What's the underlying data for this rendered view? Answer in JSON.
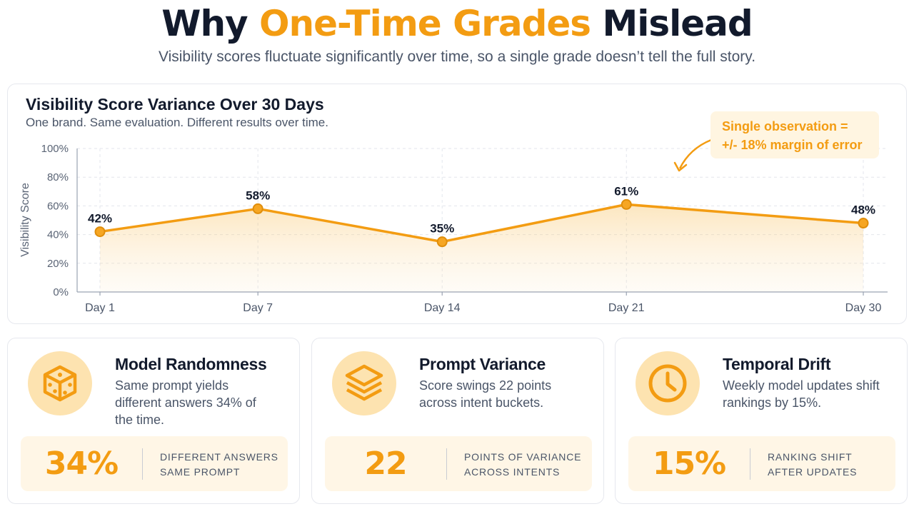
{
  "header": {
    "title_part1": "Why ",
    "title_highlight": "One-Time Grades",
    "title_part2": " Mislead",
    "subtitle": "Visibility scores fluctuate significantly over time, so a single grade doesn’t tell the full story."
  },
  "chart_card": {
    "callout_line1": "Single observation =",
    "callout_line2": "+/- 18% margin of error"
  },
  "chart_data": {
    "type": "area",
    "title": "Visibility Score Variance Over 30 Days",
    "subtitle": "One brand. Same evaluation. Different results over time.",
    "xlabel": "",
    "ylabel": "Visibility Score",
    "categories": [
      "Day 1",
      "Day 7",
      "Day 14",
      "Day 21",
      "Day 30"
    ],
    "values": [
      42,
      58,
      35,
      61,
      48
    ],
    "data_labels": [
      "42%",
      "58%",
      "35%",
      "61%",
      "48%"
    ],
    "y_ticks": [
      "0%",
      "20%",
      "40%",
      "60%",
      "80%",
      "100%"
    ],
    "ylim": [
      0,
      100
    ],
    "grid": true,
    "color": "#f39c12"
  },
  "cards": [
    {
      "icon": "dice-icon",
      "title": "Model Randomness",
      "description": "Same prompt yields different answers 34% of the time.",
      "stat_value": "34%",
      "stat_label_line1": "DIFFERENT ANSWERS",
      "stat_label_line2": "SAME PROMPT"
    },
    {
      "icon": "layers-icon",
      "title": "Prompt Variance",
      "description": "Score swings 22 points across intent buckets.",
      "stat_value": "22",
      "stat_label_line1": "POINTS OF VARIANCE",
      "stat_label_line2": "ACROSS INTENTS"
    },
    {
      "icon": "clock-icon",
      "title": "Temporal Drift",
      "description": "Weekly model updates shift rankings by 15%.",
      "stat_value": "15%",
      "stat_label_line1": "RANKING SHIFT",
      "stat_label_line2": "AFTER UPDATES"
    }
  ]
}
